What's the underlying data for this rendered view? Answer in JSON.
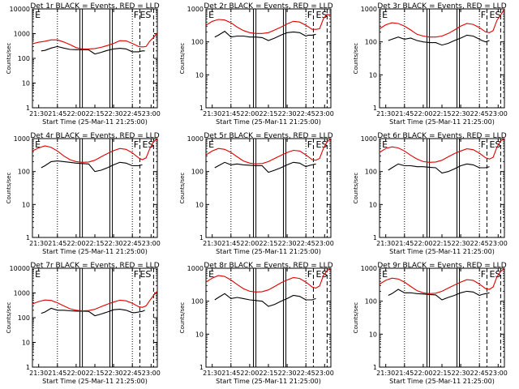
{
  "figure": {
    "y_axis_label": "Counts/sec",
    "x_axis_label": "Start Time (25-Mar-11 21:25:00)",
    "x_tick_labels": [
      "21:30",
      "21:45",
      "22:00",
      "22:15",
      "22:30",
      "22:45",
      "23:00"
    ],
    "y_tick_labels": [
      "1",
      "10",
      "100",
      "1000",
      "10000"
    ],
    "colors": {
      "events": "#000000",
      "lld": "#e00000"
    }
  },
  "chart_data": [
    {
      "type": "line",
      "title": "Det 1r BLACK = Events, RED = LLD",
      "xlabel": "Start Time (25-Mar-11 21:25:00)",
      "ylabel": "Counts/sec",
      "yscale": "log",
      "ylim": [
        1,
        10000
      ],
      "xlim_minutes": [
        0,
        100
      ],
      "markers": [
        {
          "label": "E",
          "at": 2
        },
        {
          "label": "F",
          "at": 81
        },
        {
          "label": "ES",
          "at": 86
        }
      ],
      "series": [
        {
          "name": "Events",
          "x": [
            0,
            5,
            6,
            7,
            10,
            15,
            20,
            25,
            30,
            35,
            40,
            45,
            50,
            55,
            60,
            65,
            70,
            75,
            80,
            82,
            85,
            88,
            90
          ],
          "y": [
            null,
            null,
            null,
            200,
            210,
            260,
            300,
            260,
            230,
            225,
            225,
            220,
            150,
            175,
            210,
            240,
            255,
            240,
            185,
            185,
            185,
            200,
            200
          ]
        },
        {
          "name": "LLD",
          "x": [
            0,
            5,
            10,
            15,
            20,
            25,
            30,
            35,
            40,
            45,
            50,
            55,
            60,
            65,
            70,
            75,
            80,
            85,
            88,
            91,
            94,
            97,
            100
          ],
          "y": [
            390,
            450,
            490,
            560,
            560,
            460,
            360,
            270,
            240,
            240,
            250,
            280,
            330,
            400,
            520,
            510,
            400,
            300,
            290,
            300,
            500,
            700,
            1100
          ]
        }
      ]
    },
    {
      "type": "line",
      "title": "Det 2r BLACK = Events, RED = LLD",
      "xlabel": "Start Time (25-Mar-11 21:25:00)",
      "ylabel": "Counts/sec",
      "yscale": "log",
      "ylim": [
        1,
        1000
      ],
      "xlim_minutes": [
        0,
        100
      ],
      "markers": [
        {
          "label": "E",
          "at": 2
        },
        {
          "label": "F",
          "at": 81
        },
        {
          "label": "ES",
          "at": 88
        }
      ],
      "series": [
        {
          "name": "Events",
          "x": [
            7,
            10,
            15,
            20,
            25,
            30,
            35,
            40,
            45,
            50,
            55,
            60,
            65,
            70,
            75,
            80,
            82,
            85,
            88
          ],
          "y": [
            140,
            160,
            210,
            140,
            150,
            150,
            140,
            140,
            135,
            110,
            130,
            160,
            190,
            200,
            190,
            150,
            160,
            160,
            170
          ]
        },
        {
          "name": "LLD",
          "x": [
            0,
            5,
            10,
            15,
            20,
            25,
            30,
            35,
            40,
            45,
            50,
            55,
            60,
            65,
            70,
            75,
            80,
            85,
            88,
            91,
            94,
            97,
            100
          ],
          "y": [
            320,
            420,
            480,
            460,
            380,
            280,
            220,
            190,
            180,
            180,
            190,
            230,
            280,
            350,
            420,
            400,
            320,
            240,
            240,
            250,
            500,
            700,
            600
          ]
        }
      ]
    },
    {
      "type": "line",
      "title": "Det 3r BLACK = Events, RED = LLD",
      "xlabel": "Start Time (25-Mar-11 21:25:00)",
      "ylabel": "Counts/sec",
      "yscale": "log",
      "ylim": [
        1,
        1000
      ],
      "xlim_minutes": [
        0,
        100
      ],
      "markers": [
        {
          "label": "E",
          "at": 2
        },
        {
          "label": "F",
          "at": 81
        },
        {
          "label": "ES",
          "at": 88
        }
      ],
      "series": [
        {
          "name": "Events",
          "x": [
            7,
            10,
            15,
            20,
            25,
            30,
            35,
            40,
            45,
            50,
            55,
            60,
            65,
            70,
            75,
            80,
            82,
            85,
            88
          ],
          "y": [
            110,
            120,
            140,
            120,
            130,
            110,
            100,
            95,
            95,
            80,
            90,
            110,
            130,
            160,
            150,
            120,
            110,
            100,
            110
          ]
        },
        {
          "name": "LLD",
          "x": [
            0,
            5,
            10,
            15,
            20,
            25,
            30,
            35,
            40,
            45,
            50,
            55,
            60,
            65,
            70,
            75,
            80,
            85,
            88,
            91,
            94,
            97,
            100
          ],
          "y": [
            250,
            330,
            380,
            360,
            300,
            230,
            170,
            150,
            140,
            140,
            150,
            180,
            230,
            300,
            360,
            340,
            270,
            200,
            190,
            220,
            450,
            650,
            1000
          ]
        }
      ]
    },
    {
      "type": "line",
      "title": "Det 4r BLACK = Events, RED = LLD",
      "xlabel": "Start Time (25-Mar-11 21:25:00)",
      "ylabel": "Counts/sec",
      "yscale": "log",
      "ylim": [
        1,
        1000
      ],
      "xlim_minutes": [
        0,
        100
      ],
      "markers": [
        {
          "label": "E",
          "at": 2
        },
        {
          "label": "F",
          "at": 81
        },
        {
          "label": "ES",
          "at": 88
        }
      ],
      "series": [
        {
          "name": "Events",
          "x": [
            7,
            10,
            15,
            20,
            25,
            30,
            35,
            40,
            45,
            50,
            55,
            60,
            65,
            70,
            75,
            80,
            82,
            85,
            88
          ],
          "y": [
            130,
            150,
            200,
            210,
            200,
            190,
            180,
            175,
            170,
            100,
            110,
            130,
            160,
            190,
            180,
            150,
            150,
            150,
            160
          ]
        },
        {
          "name": "LLD",
          "x": [
            0,
            5,
            10,
            15,
            20,
            25,
            30,
            35,
            40,
            45,
            50,
            55,
            60,
            65,
            70,
            75,
            80,
            85,
            88,
            91,
            94,
            97,
            100
          ],
          "y": [
            420,
            520,
            600,
            540,
            420,
            300,
            230,
            200,
            190,
            195,
            220,
            280,
            350,
            430,
            500,
            470,
            370,
            260,
            230,
            260,
            500,
            800,
            1000
          ]
        }
      ]
    },
    {
      "type": "line",
      "title": "Det 5r BLACK = Events, RED = LLD",
      "xlabel": "Start Time (25-Mar-11 21:25:00)",
      "ylabel": "Counts/sec",
      "yscale": "log",
      "ylim": [
        1,
        1000
      ],
      "xlim_minutes": [
        0,
        100
      ],
      "markers": [
        {
          "label": "E",
          "at": 2
        },
        {
          "label": "F",
          "at": 81
        },
        {
          "label": "ES",
          "at": 88
        }
      ],
      "series": [
        {
          "name": "Events",
          "x": [
            7,
            10,
            15,
            20,
            25,
            30,
            35,
            40,
            45,
            50,
            55,
            60,
            65,
            70,
            75,
            80,
            82,
            85,
            88
          ],
          "y": [
            130,
            150,
            190,
            160,
            170,
            160,
            155,
            150,
            150,
            95,
            110,
            130,
            160,
            190,
            180,
            140,
            150,
            160,
            170
          ]
        },
        {
          "name": "LLD",
          "x": [
            0,
            5,
            10,
            15,
            20,
            25,
            30,
            35,
            40,
            45,
            50,
            55,
            60,
            65,
            70,
            75,
            80,
            85,
            88,
            91,
            94,
            97,
            100
          ],
          "y": [
            320,
            420,
            500,
            470,
            380,
            280,
            210,
            180,
            170,
            175,
            200,
            250,
            310,
            380,
            440,
            420,
            320,
            230,
            220,
            250,
            500,
            800,
            1000
          ]
        }
      ]
    },
    {
      "type": "line",
      "title": "Det 6r BLACK = Events, RED = LLD",
      "xlabel": "Start Time (25-Mar-11 21:25:00)",
      "ylabel": "Counts/sec",
      "yscale": "log",
      "ylim": [
        1,
        1000
      ],
      "xlim_minutes": [
        0,
        100
      ],
      "markers": [
        {
          "label": "E",
          "at": 2
        },
        {
          "label": "F",
          "at": 81
        },
        {
          "label": "ES",
          "at": 88
        }
      ],
      "series": [
        {
          "name": "Events",
          "x": [
            7,
            10,
            15,
            20,
            25,
            30,
            35,
            40,
            45,
            50,
            55,
            60,
            65,
            70,
            75,
            80,
            82,
            85,
            88
          ],
          "y": [
            110,
            130,
            170,
            150,
            150,
            140,
            140,
            135,
            130,
            90,
            100,
            120,
            150,
            170,
            160,
            130,
            130,
            130,
            140
          ]
        },
        {
          "name": "LLD",
          "x": [
            0,
            5,
            10,
            15,
            20,
            25,
            30,
            35,
            40,
            45,
            50,
            55,
            60,
            65,
            70,
            75,
            80,
            85,
            88,
            91,
            94,
            97,
            100
          ],
          "y": [
            380,
            500,
            560,
            520,
            420,
            310,
            240,
            200,
            190,
            195,
            220,
            280,
            350,
            420,
            490,
            460,
            360,
            260,
            240,
            270,
            550,
            850,
            1000
          ]
        }
      ]
    },
    {
      "type": "line",
      "title": "Det 7r BLACK = Events, RED = LLD",
      "xlabel": "Start Time (25-Mar-11 21:25:00)",
      "ylabel": "Counts/sec",
      "yscale": "log",
      "ylim": [
        1,
        10000
      ],
      "xlim_minutes": [
        0,
        100
      ],
      "markers": [
        {
          "label": "E",
          "at": 2
        },
        {
          "label": "F",
          "at": 81
        },
        {
          "label": "ES",
          "at": 86
        }
      ],
      "series": [
        {
          "name": "Events",
          "x": [
            7,
            10,
            15,
            20,
            25,
            30,
            35,
            40,
            45,
            50,
            55,
            60,
            65,
            70,
            75,
            80,
            82,
            85,
            88,
            90
          ],
          "y": [
            150,
            170,
            240,
            200,
            200,
            190,
            185,
            185,
            180,
            120,
            140,
            170,
            210,
            220,
            200,
            160,
            160,
            170,
            180,
            200
          ]
        },
        {
          "name": "LLD",
          "x": [
            0,
            5,
            10,
            15,
            20,
            25,
            30,
            35,
            40,
            45,
            50,
            55,
            60,
            65,
            70,
            75,
            80,
            85,
            88,
            91,
            94,
            97,
            100
          ],
          "y": [
            360,
            450,
            520,
            500,
            400,
            300,
            230,
            200,
            190,
            195,
            220,
            280,
            350,
            430,
            510,
            480,
            380,
            280,
            260,
            300,
            500,
            800,
            1200
          ]
        }
      ]
    },
    {
      "type": "line",
      "title": "Det 8r BLACK = Events, RED = LLD",
      "xlabel": "Start Time (25-Mar-11 21:25:00)",
      "ylabel": "Counts/sec",
      "yscale": "log",
      "ylim": [
        1,
        1000
      ],
      "xlim_minutes": [
        0,
        100
      ],
      "markers": [
        {
          "label": "E",
          "at": 2
        },
        {
          "label": "F",
          "at": 81
        },
        {
          "label": "ES",
          "at": 88
        }
      ],
      "series": [
        {
          "name": "Events",
          "x": [
            7,
            10,
            15,
            20,
            25,
            30,
            35,
            40,
            45,
            50,
            55,
            60,
            65,
            70,
            75,
            80,
            82,
            85,
            88
          ],
          "y": [
            110,
            130,
            170,
            120,
            130,
            120,
            110,
            105,
            100,
            70,
            80,
            100,
            120,
            150,
            140,
            110,
            110,
            110,
            120
          ]
        },
        {
          "name": "LLD",
          "x": [
            0,
            5,
            10,
            15,
            20,
            25,
            30,
            35,
            40,
            45,
            50,
            55,
            60,
            65,
            70,
            75,
            80,
            85,
            88,
            91,
            94,
            97,
            100
          ],
          "y": [
            380,
            500,
            600,
            560,
            440,
            320,
            240,
            200,
            190,
            195,
            220,
            280,
            360,
            440,
            520,
            490,
            380,
            270,
            250,
            290,
            600,
            850,
            1000
          ]
        }
      ]
    },
    {
      "type": "line",
      "title": "Det 9r BLACK = Events, RED = LLD",
      "xlabel": "Start Time (25-Mar-11 21:25:00)",
      "ylabel": "Counts/sec",
      "yscale": "log",
      "ylim": [
        1,
        1000
      ],
      "xlim_minutes": [
        0,
        100
      ],
      "markers": [
        {
          "label": "E",
          "at": 2
        },
        {
          "label": "F",
          "at": 81
        },
        {
          "label": "ES",
          "at": 88
        }
      ],
      "series": [
        {
          "name": "Events",
          "x": [
            7,
            10,
            15,
            20,
            25,
            30,
            35,
            40,
            45,
            50,
            55,
            60,
            65,
            70,
            75,
            80,
            82,
            85,
            88
          ],
          "y": [
            150,
            170,
            230,
            180,
            180,
            170,
            165,
            160,
            155,
            110,
            130,
            150,
            180,
            200,
            190,
            150,
            160,
            170,
            180
          ]
        },
        {
          "name": "LLD",
          "x": [
            0,
            5,
            10,
            15,
            20,
            25,
            30,
            35,
            40,
            45,
            50,
            55,
            60,
            65,
            70,
            75,
            80,
            85,
            88,
            91,
            94,
            97,
            100
          ],
          "y": [
            330,
            430,
            500,
            470,
            380,
            280,
            210,
            180,
            170,
            175,
            200,
            250,
            310,
            380,
            450,
            430,
            330,
            240,
            230,
            270,
            550,
            800,
            1000
          ]
        }
      ]
    }
  ]
}
